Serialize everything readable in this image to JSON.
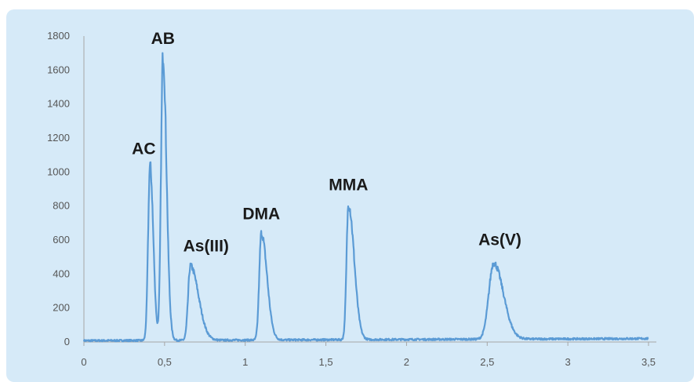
{
  "chart_data": {
    "type": "line",
    "title": "",
    "xlabel": "",
    "ylabel": "",
    "xlim": [
      0,
      3.5
    ],
    "ylim": [
      0,
      1800
    ],
    "x_ticks": [
      0,
      0.5,
      1,
      1.5,
      2,
      2.5,
      3,
      3.5
    ],
    "x_tick_labels": [
      "0",
      "0,5",
      "1",
      "1,5",
      "2",
      "2,5",
      "3",
      "3,5"
    ],
    "y_ticks": [
      0,
      200,
      400,
      600,
      800,
      1000,
      1200,
      1400,
      1600,
      1800
    ],
    "y_tick_labels": [
      "0",
      "200",
      "400",
      "600",
      "800",
      "1000",
      "1200",
      "1400",
      "1600",
      "1800"
    ],
    "grid": false,
    "line_color": "#5b9bd5",
    "background_color": "#d6eaf8",
    "peaks": [
      {
        "label": "AC",
        "x": 0.41,
        "y": 1040
      },
      {
        "label": "AB",
        "x": 0.49,
        "y": 1690
      },
      {
        "label": "As(III)",
        "x": 0.66,
        "y": 450
      },
      {
        "label": "DMA",
        "x": 1.1,
        "y": 640
      },
      {
        "label": "MMA",
        "x": 1.64,
        "y": 810
      },
      {
        "label": "As(V)",
        "x": 2.54,
        "y": 460
      }
    ]
  }
}
